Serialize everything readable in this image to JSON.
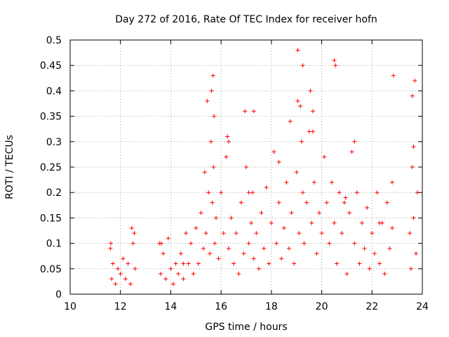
{
  "chart_data": {
    "type": "scatter",
    "title": "Day 272 of 2016, Rate Of TEC Index for receiver hofn",
    "xlabel": "GPS time / hours",
    "ylabel": "ROTI / TECUs",
    "xlim": [
      10,
      24
    ],
    "ylim": [
      0,
      0.5
    ],
    "xticks": [
      10,
      12,
      14,
      16,
      18,
      20,
      22,
      24
    ],
    "xtick_labels": [
      "10",
      "12",
      "14",
      "16",
      "18",
      "20",
      "22",
      "24"
    ],
    "yticks": [
      0,
      0.05,
      0.1,
      0.15,
      0.2,
      0.25,
      0.3,
      0.35,
      0.4,
      0.45,
      0.5
    ],
    "ytick_labels": [
      "0",
      "0.05",
      "0.1",
      "0.15",
      "0.2",
      "0.25",
      "0.3",
      "0.35",
      "0.4",
      "0.45",
      "0.5"
    ],
    "grid": true,
    "marker": "plus",
    "color": "#ff0000",
    "series": [
      {
        "name": "ROTI",
        "x": [
          11.6,
          11.65,
          11.7,
          11.8,
          11.9,
          12.0,
          12.1,
          12.2,
          12.3,
          12.4,
          12.5,
          12.55,
          12.58,
          13.55,
          13.6,
          13.7,
          13.8,
          13.9,
          14.0,
          14.1,
          14.2,
          14.3,
          14.4,
          14.5,
          14.6,
          14.7,
          14.8,
          14.9,
          15.0,
          15.1,
          15.2,
          15.3,
          15.35,
          15.4,
          15.5,
          15.55,
          15.6,
          15.65,
          15.7,
          15.75,
          15.8,
          15.9,
          16.0,
          16.1,
          16.2,
          16.25,
          16.3,
          16.4,
          16.5,
          16.6,
          16.7,
          16.8,
          16.9,
          17.0,
          17.1,
          17.2,
          17.25,
          17.3,
          17.4,
          17.5,
          17.6,
          17.7,
          17.8,
          17.9,
          18.0,
          18.1,
          18.2,
          18.3,
          18.4,
          18.5,
          18.6,
          18.7,
          18.8,
          18.9,
          19.0,
          19.05,
          19.1,
          19.2,
          19.25,
          19.3,
          19.4,
          19.5,
          19.6,
          19.65,
          19.7,
          19.8,
          19.9,
          20.0,
          20.1,
          20.2,
          20.3,
          20.4,
          20.5,
          20.55,
          20.6,
          20.7,
          20.8,
          20.9,
          21.0,
          21.1,
          21.2,
          21.3,
          21.4,
          21.5,
          21.6,
          21.7,
          21.8,
          21.9,
          22.0,
          22.1,
          22.2,
          22.3,
          22.4,
          22.5,
          22.6,
          22.7,
          22.8,
          22.85,
          23.5,
          23.55,
          23.6,
          23.65,
          23.7,
          23.75,
          23.8,
          11.62,
          12.45,
          13.62,
          14.5,
          15.45,
          15.62,
          15.68,
          15.72,
          16.3,
          16.95,
          17.1,
          17.3,
          18.3,
          18.75,
          19.05,
          19.15,
          19.25,
          19.55,
          19.65,
          20.5,
          20.95,
          21.3,
          22.3,
          22.8,
          23.6,
          23.65
        ],
        "y": [
          0.09,
          0.03,
          0.06,
          0.02,
          0.05,
          0.04,
          0.07,
          0.03,
          0.06,
          0.02,
          0.1,
          0.12,
          0.05,
          0.1,
          0.04,
          0.08,
          0.03,
          0.11,
          0.05,
          0.02,
          0.06,
          0.04,
          0.08,
          0.03,
          0.12,
          0.06,
          0.1,
          0.04,
          0.13,
          0.06,
          0.16,
          0.09,
          0.24,
          0.12,
          0.2,
          0.08,
          0.3,
          0.18,
          0.25,
          0.1,
          0.15,
          0.07,
          0.2,
          0.12,
          0.27,
          0.31,
          0.09,
          0.15,
          0.06,
          0.12,
          0.04,
          0.18,
          0.08,
          0.25,
          0.1,
          0.14,
          0.2,
          0.07,
          0.12,
          0.05,
          0.16,
          0.09,
          0.21,
          0.06,
          0.14,
          0.28,
          0.1,
          0.18,
          0.07,
          0.13,
          0.22,
          0.09,
          0.16,
          0.06,
          0.24,
          0.38,
          0.12,
          0.3,
          0.2,
          0.1,
          0.18,
          0.32,
          0.14,
          0.36,
          0.22,
          0.08,
          0.16,
          0.12,
          0.27,
          0.18,
          0.1,
          0.22,
          0.14,
          0.45,
          0.06,
          0.2,
          0.12,
          0.18,
          0.04,
          0.16,
          0.28,
          0.1,
          0.2,
          0.06,
          0.14,
          0.09,
          0.17,
          0.05,
          0.12,
          0.08,
          0.2,
          0.06,
          0.14,
          0.04,
          0.18,
          0.09,
          0.13,
          0.43,
          0.12,
          0.05,
          0.25,
          0.15,
          0.42,
          0.08,
          0.2,
          0.1,
          0.13,
          0.1,
          0.06,
          0.38,
          0.4,
          0.43,
          0.35,
          0.3,
          0.36,
          0.2,
          0.36,
          0.26,
          0.34,
          0.48,
          0.37,
          0.45,
          0.4,
          0.32,
          0.46,
          0.19,
          0.3,
          0.14,
          0.22,
          0.39,
          0.29
        ]
      }
    ]
  }
}
